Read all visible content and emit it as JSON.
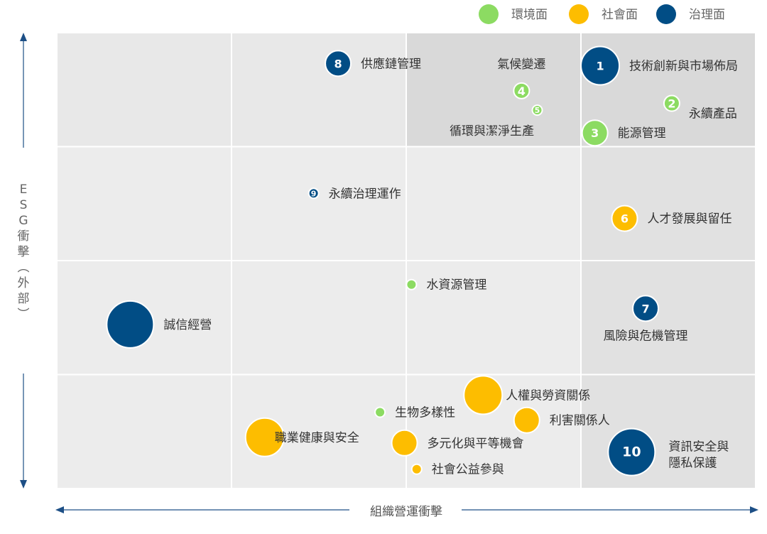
{
  "chart_data": {
    "type": "scatter",
    "subtype": "bubble-matrix",
    "xlabel": "組織營運衝擊",
    "ylabel": "ESG衝擊(外部)",
    "xlim": [
      0,
      4
    ],
    "ylim": [
      0,
      4
    ],
    "grid": true,
    "legend_position": "top-right",
    "legend": [
      {
        "key": "env",
        "name": "環境面",
        "color": "#8cdb62"
      },
      {
        "key": "soc",
        "name": "社會面",
        "color": "#fdbd00"
      },
      {
        "key": "gov",
        "name": "治理面",
        "color": "#014d85"
      }
    ],
    "points": [
      {
        "num": "1",
        "label": "技術創新與市場佈局",
        "category": "gov",
        "x": 3.11,
        "y": 3.71,
        "size": 4
      },
      {
        "num": "2",
        "label": "永續產品",
        "category": "env",
        "x": 3.52,
        "y": 3.38,
        "size": 2
      },
      {
        "num": "3",
        "label": "能源管理",
        "category": "env",
        "x": 3.08,
        "y": 3.12,
        "size": 3
      },
      {
        "num": "4",
        "label": "氣候變遷",
        "category": "env",
        "x": 2.66,
        "y": 3.49,
        "size": 2
      },
      {
        "num": "5",
        "label": "循環與潔淨生產",
        "category": "env",
        "x": 2.75,
        "y": 3.32,
        "size": 1
      },
      {
        "num": "6",
        "label": "人才發展與留任",
        "category": "soc",
        "x": 3.25,
        "y": 2.37,
        "size": 3
      },
      {
        "num": "7",
        "label": "風險與危機管理",
        "category": "gov",
        "x": 3.37,
        "y": 1.58,
        "size": 3
      },
      {
        "num": "8",
        "label": "供應鏈管理",
        "category": "gov",
        "x": 1.61,
        "y": 3.73,
        "size": 3
      },
      {
        "num": "9",
        "label": "永續治理運作",
        "category": "gov",
        "x": 1.47,
        "y": 2.59,
        "size": 1
      },
      {
        "num": "10",
        "label": "資訊安全與\n隱私保護",
        "category": "gov",
        "x": 3.29,
        "y": 0.32,
        "size": 5
      },
      {
        "num": "",
        "label": "誠信經營",
        "category": "gov",
        "x": 0.42,
        "y": 1.44,
        "size": 5
      },
      {
        "num": "",
        "label": "水資源管理",
        "category": "env",
        "x": 2.03,
        "y": 1.79,
        "size": 1
      },
      {
        "num": "",
        "label": "人權與勞資關係",
        "category": "soc",
        "x": 2.44,
        "y": 0.82,
        "size": 4
      },
      {
        "num": "",
        "label": "生物多樣性",
        "category": "env",
        "x": 1.85,
        "y": 0.67,
        "size": 1
      },
      {
        "num": "",
        "label": "利害關係人",
        "category": "soc",
        "x": 2.69,
        "y": 0.6,
        "size": 3
      },
      {
        "num": "",
        "label": "職業健康與安全",
        "category": "soc",
        "x": 1.19,
        "y": 0.45,
        "size": 4
      },
      {
        "num": "",
        "label": "多元化與平等機會",
        "category": "soc",
        "x": 1.99,
        "y": 0.4,
        "size": 3
      },
      {
        "num": "",
        "label": "社會公益參與",
        "category": "soc",
        "x": 2.06,
        "y": 0.17,
        "size": 1
      }
    ]
  }
}
